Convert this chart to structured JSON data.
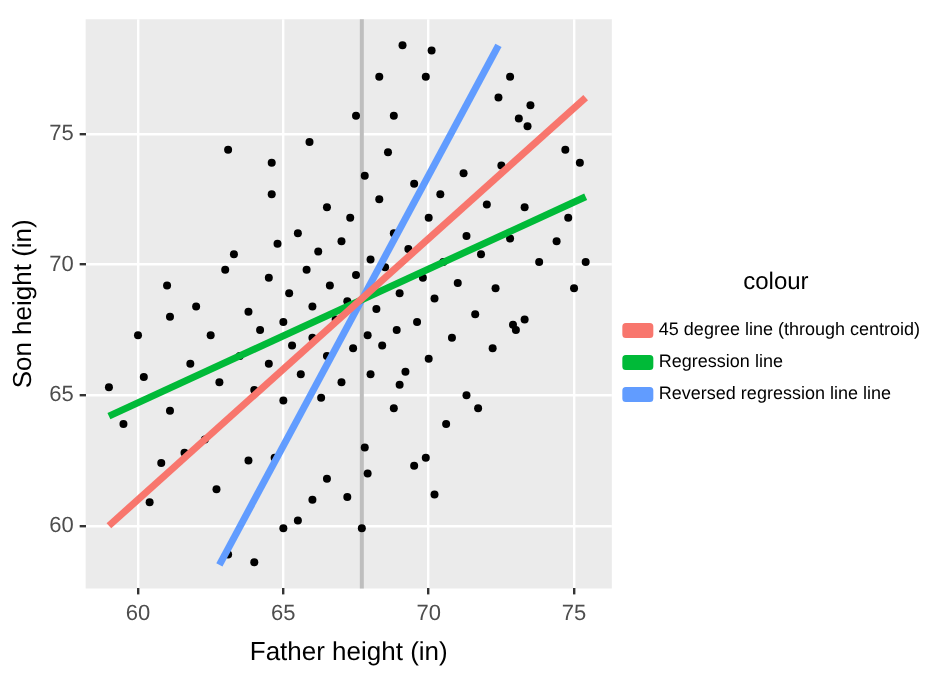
{
  "chart_data": {
    "type": "scatter",
    "xlabel": "Father height (in)",
    "ylabel": "Son height (in)",
    "legend_title": "colour",
    "legend": "right",
    "grid": true,
    "xlim": [
      58.2,
      76.3
    ],
    "xticks": [
      60,
      65,
      70,
      75
    ],
    "ylim": [
      57.6,
      79.4
    ],
    "yticks": [
      60,
      65,
      70,
      75
    ],
    "ref_lines": [
      {
        "axis": "x",
        "value": 67.7,
        "color": "#bebebe"
      }
    ],
    "series": [
      {
        "color": "#000000",
        "marker": "circle",
        "x": [
          69.1,
          70.1,
          68.3,
          69.9,
          72.8,
          72.4,
          73.5,
          67.5,
          68.8,
          73.1,
          73.4,
          63.1,
          65.9,
          64.6,
          74.7,
          75.2,
          61.0,
          63.3,
          75.4,
          75.0,
          74.8,
          74.4,
          73.8,
          64.6,
          61.1,
          59.0,
          60.0,
          59.5,
          60.8,
          60.4,
          60.2,
          61.1,
          62.7,
          63.1,
          64.0,
          65.0,
          65.5,
          66.0,
          66.5,
          67.2,
          67.7,
          67.9,
          67.8,
          69.5,
          69.9,
          70.2,
          70.6,
          71.7,
          71.3,
          72.2,
          73.3,
          72.9,
          68.8,
          69.0,
          64.7,
          63.8,
          61.6,
          62.3,
          63.5,
          63.8,
          64.0,
          64.2,
          64.5,
          64.5,
          64.8,
          65.0,
          65.0,
          65.2,
          65.3,
          65.5,
          65.6,
          65.8,
          66.0,
          66.0,
          66.2,
          66.3,
          66.5,
          66.5,
          66.6,
          66.8,
          67.0,
          67.0,
          67.2,
          67.3,
          67.4,
          67.5,
          67.8,
          67.9,
          68.0,
          68.0,
          68.2,
          68.3,
          68.4,
          68.5,
          68.6,
          68.8,
          68.9,
          69.0,
          69.2,
          69.3,
          69.5,
          69.6,
          69.8,
          70.0,
          70.0,
          70.2,
          70.4,
          70.5,
          70.8,
          71.0,
          71.2,
          71.3,
          71.6,
          71.8,
          72.0,
          72.3,
          72.5,
          72.8,
          73.0,
          73.3,
          62.5,
          62.8,
          63.0,
          61.8,
          62.0
        ],
        "values": [
          78.4,
          78.2,
          77.2,
          77.2,
          77.2,
          76.4,
          76.1,
          75.7,
          75.7,
          75.6,
          75.3,
          74.4,
          74.7,
          73.9,
          74.4,
          73.9,
          69.2,
          70.4,
          70.1,
          69.1,
          71.8,
          70.9,
          70.1,
          72.7,
          68.0,
          65.3,
          67.3,
          63.9,
          62.4,
          60.9,
          65.7,
          64.4,
          61.4,
          58.9,
          58.6,
          59.9,
          60.2,
          61.0,
          61.8,
          61.1,
          59.9,
          62.0,
          63.0,
          62.3,
          62.6,
          61.2,
          63.9,
          64.5,
          65.0,
          66.8,
          67.9,
          67.7,
          64.5,
          65.4,
          62.6,
          62.5,
          62.8,
          63.3,
          66.5,
          68.2,
          65.2,
          67.5,
          69.5,
          66.2,
          70.8,
          64.8,
          67.8,
          68.9,
          66.9,
          71.2,
          65.8,
          69.8,
          67.2,
          68.4,
          70.5,
          64.9,
          72.2,
          66.5,
          69.2,
          67.9,
          70.9,
          65.5,
          68.6,
          71.8,
          66.8,
          69.6,
          73.4,
          67.3,
          70.2,
          65.8,
          68.3,
          72.5,
          66.9,
          69.9,
          74.3,
          71.2,
          67.5,
          68.9,
          65.9,
          70.6,
          73.1,
          67.8,
          69.5,
          71.8,
          66.4,
          68.7,
          72.7,
          70.1,
          67.2,
          69.3,
          73.5,
          71.1,
          68.1,
          70.4,
          72.3,
          69.1,
          73.8,
          71.0,
          67.5,
          72.2,
          67.3,
          65.5,
          69.8,
          66.2,
          68.4
        ]
      },
      {
        "type": "line",
        "marker": "none",
        "name": "45 degree line (through centroid)",
        "color": "#f8766d",
        "x": [
          59.0,
          75.4
        ],
        "values": [
          60.0,
          76.4
        ]
      },
      {
        "type": "line",
        "marker": "none",
        "name": "Regression line",
        "color": "#00ba38",
        "x": [
          59.0,
          75.4
        ],
        "values": [
          64.2,
          72.6
        ]
      },
      {
        "type": "line",
        "marker": "none",
        "name": "Reversed regression line line",
        "color": "#619cff",
        "x": [
          62.8,
          72.4
        ],
        "values": [
          58.5,
          78.4
        ]
      }
    ]
  }
}
